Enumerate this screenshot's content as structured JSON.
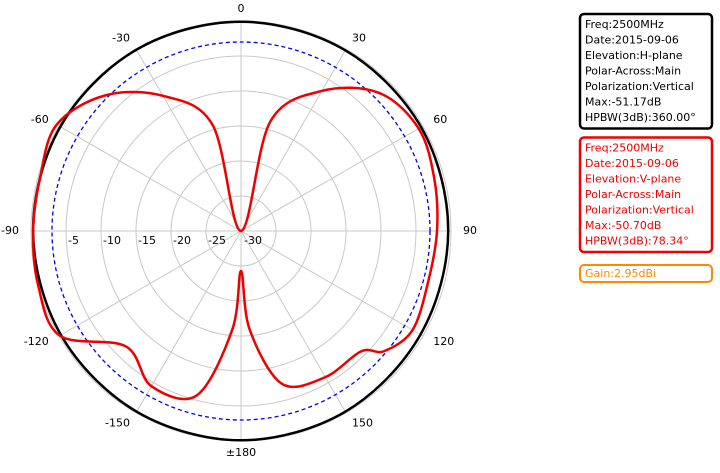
{
  "chart_data": {
    "type": "polar",
    "rlim": [
      -30,
      0
    ],
    "rticks": [
      -5,
      -10,
      -15,
      -20,
      -25,
      -30
    ],
    "thetaticks": [
      0,
      30,
      60,
      90,
      120,
      150,
      {
        "value": 180,
        "label": "±180"
      },
      -150,
      -120,
      -90,
      -60,
      -30
    ],
    "reference_circle": -3,
    "reference_color": "#0000ee",
    "series": [
      {
        "name": "H-plane",
        "color": "#000000",
        "info": [
          "Freq:2500MHz",
          "Date:2015-09-06",
          "Elevation:H-plane",
          "Polar-Across:Main",
          "Polarization:Vertical",
          "Max:-51.17dB",
          "HPBW(3dB):360.00°"
        ],
        "x": [
          -180,
          -150,
          -120,
          -90,
          -60,
          -30,
          0,
          30,
          60,
          90,
          120,
          150
        ],
        "values": [
          -0.1,
          -0.2,
          -0.3,
          -0.3,
          -0.2,
          -0.1,
          -0.1,
          -0.2,
          -0.3,
          -0.4,
          -0.4,
          -0.2
        ]
      },
      {
        "name": "V-plane",
        "color": "#ee0000",
        "info": [
          "Freq:2500MHz",
          "Date:2015-09-06",
          "Elevation:V-plane",
          "Polar-Across:Main",
          "Polarization:Vertical",
          "Max:-50.70dB",
          "HPBW(3dB):78.34°"
        ],
        "x": [
          -180,
          -175,
          -165,
          -150,
          -135,
          -120,
          -105,
          -90,
          -75,
          -60,
          -45,
          -30,
          -15,
          0,
          15,
          30,
          45,
          60,
          75,
          90,
          105,
          120,
          130,
          135,
          150,
          165,
          175
        ],
        "values": [
          -24.3,
          -15.9,
          -5.7,
          -4.4,
          -6.7,
          -0.1,
          0,
          -0.3,
          -0.3,
          0.4,
          -2.6,
          -7.7,
          -14.3,
          -30,
          -13.8,
          -6.9,
          -2.1,
          -0.7,
          -1.4,
          -2.0,
          -2.3,
          -1.7,
          -3.3,
          -5.7,
          -5.9,
          -7.4,
          -15.9
        ]
      }
    ],
    "gain_label": "Gain:2.95dBi",
    "gain_color": "#ff8800"
  }
}
